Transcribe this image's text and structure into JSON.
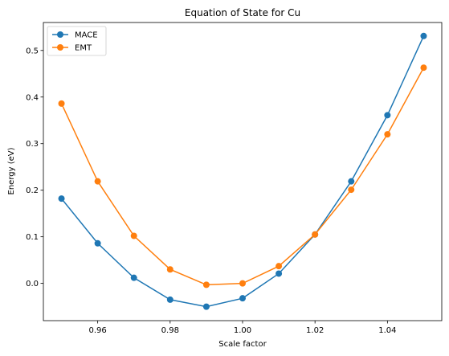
{
  "chart_data": {
    "type": "line",
    "title": "Equation of State for Cu",
    "xlabel": "Scale factor",
    "ylabel": "Energy (eV)",
    "xlim": [
      0.945,
      1.055
    ],
    "ylim": [
      -0.08,
      0.56
    ],
    "xticks": [
      0.96,
      0.98,
      1.0,
      1.02,
      1.04
    ],
    "xtick_labels": [
      "0.96",
      "0.98",
      "1.00",
      "1.02",
      "1.04"
    ],
    "yticks": [
      0.0,
      0.1,
      0.2,
      0.3,
      0.4,
      0.5
    ],
    "ytick_labels": [
      "0.0",
      "0.1",
      "0.2",
      "0.3",
      "0.4",
      "0.5"
    ],
    "grid": false,
    "legend_position": "top-left",
    "x": [
      0.95,
      0.96,
      0.97,
      0.98,
      0.99,
      1.0,
      1.01,
      1.02,
      1.03,
      1.04,
      1.05
    ],
    "series": [
      {
        "name": "MACE",
        "color": "#1f77b4",
        "marker": "circle",
        "values": [
          0.182,
          0.086,
          0.012,
          -0.035,
          -0.05,
          -0.032,
          0.021,
          0.105,
          0.219,
          0.361,
          0.531
        ]
      },
      {
        "name": "EMT",
        "color": "#ff7f0e",
        "marker": "circle",
        "values": [
          0.386,
          0.219,
          0.102,
          0.03,
          -0.003,
          0.0,
          0.037,
          0.105,
          0.201,
          0.32,
          0.463
        ]
      }
    ]
  }
}
